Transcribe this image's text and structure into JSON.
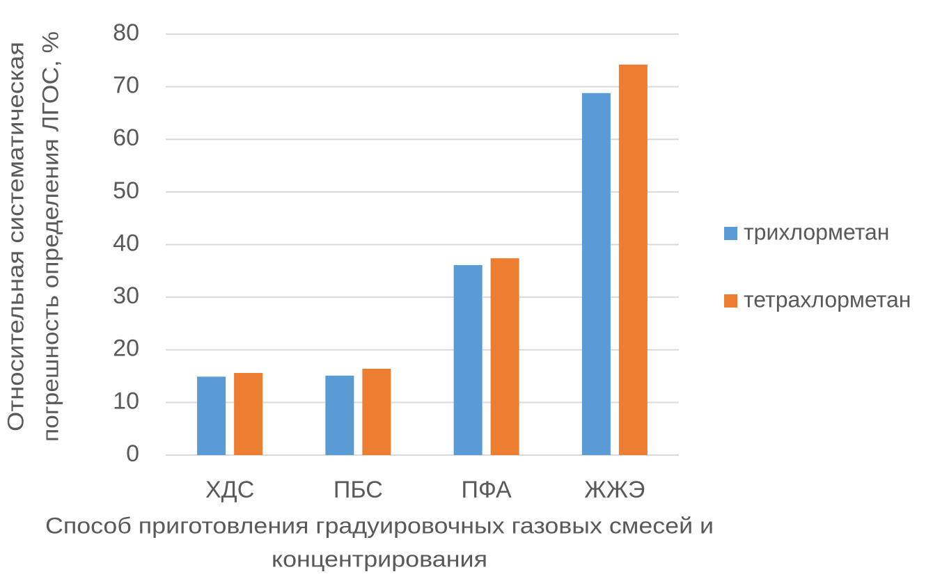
{
  "chart_data": {
    "type": "bar",
    "y_label": [
      "Относительная систематическая",
      "погрешность определения ЛГОС, %"
    ],
    "x_label": [
      "Способ приготовления градуировочных газовых смесей и",
      "концентрирования"
    ],
    "categories": [
      "ХДС",
      "ПБС",
      "ПФА",
      "ЖЖЭ"
    ],
    "series": [
      {
        "name": "трихлорметан",
        "color": "#5b9bd5",
        "values": [
          14.9,
          15.1,
          36.1,
          68.8
        ]
      },
      {
        "name": "тетрахлорметан",
        "color": "#ed7d31",
        "values": [
          15.6,
          16.4,
          37.4,
          74.2
        ]
      }
    ],
    "ylim": [
      0,
      80
    ],
    "yticks": [
      0,
      10,
      20,
      30,
      40,
      50,
      60,
      70,
      80
    ],
    "grid": true,
    "legend": "right"
  }
}
